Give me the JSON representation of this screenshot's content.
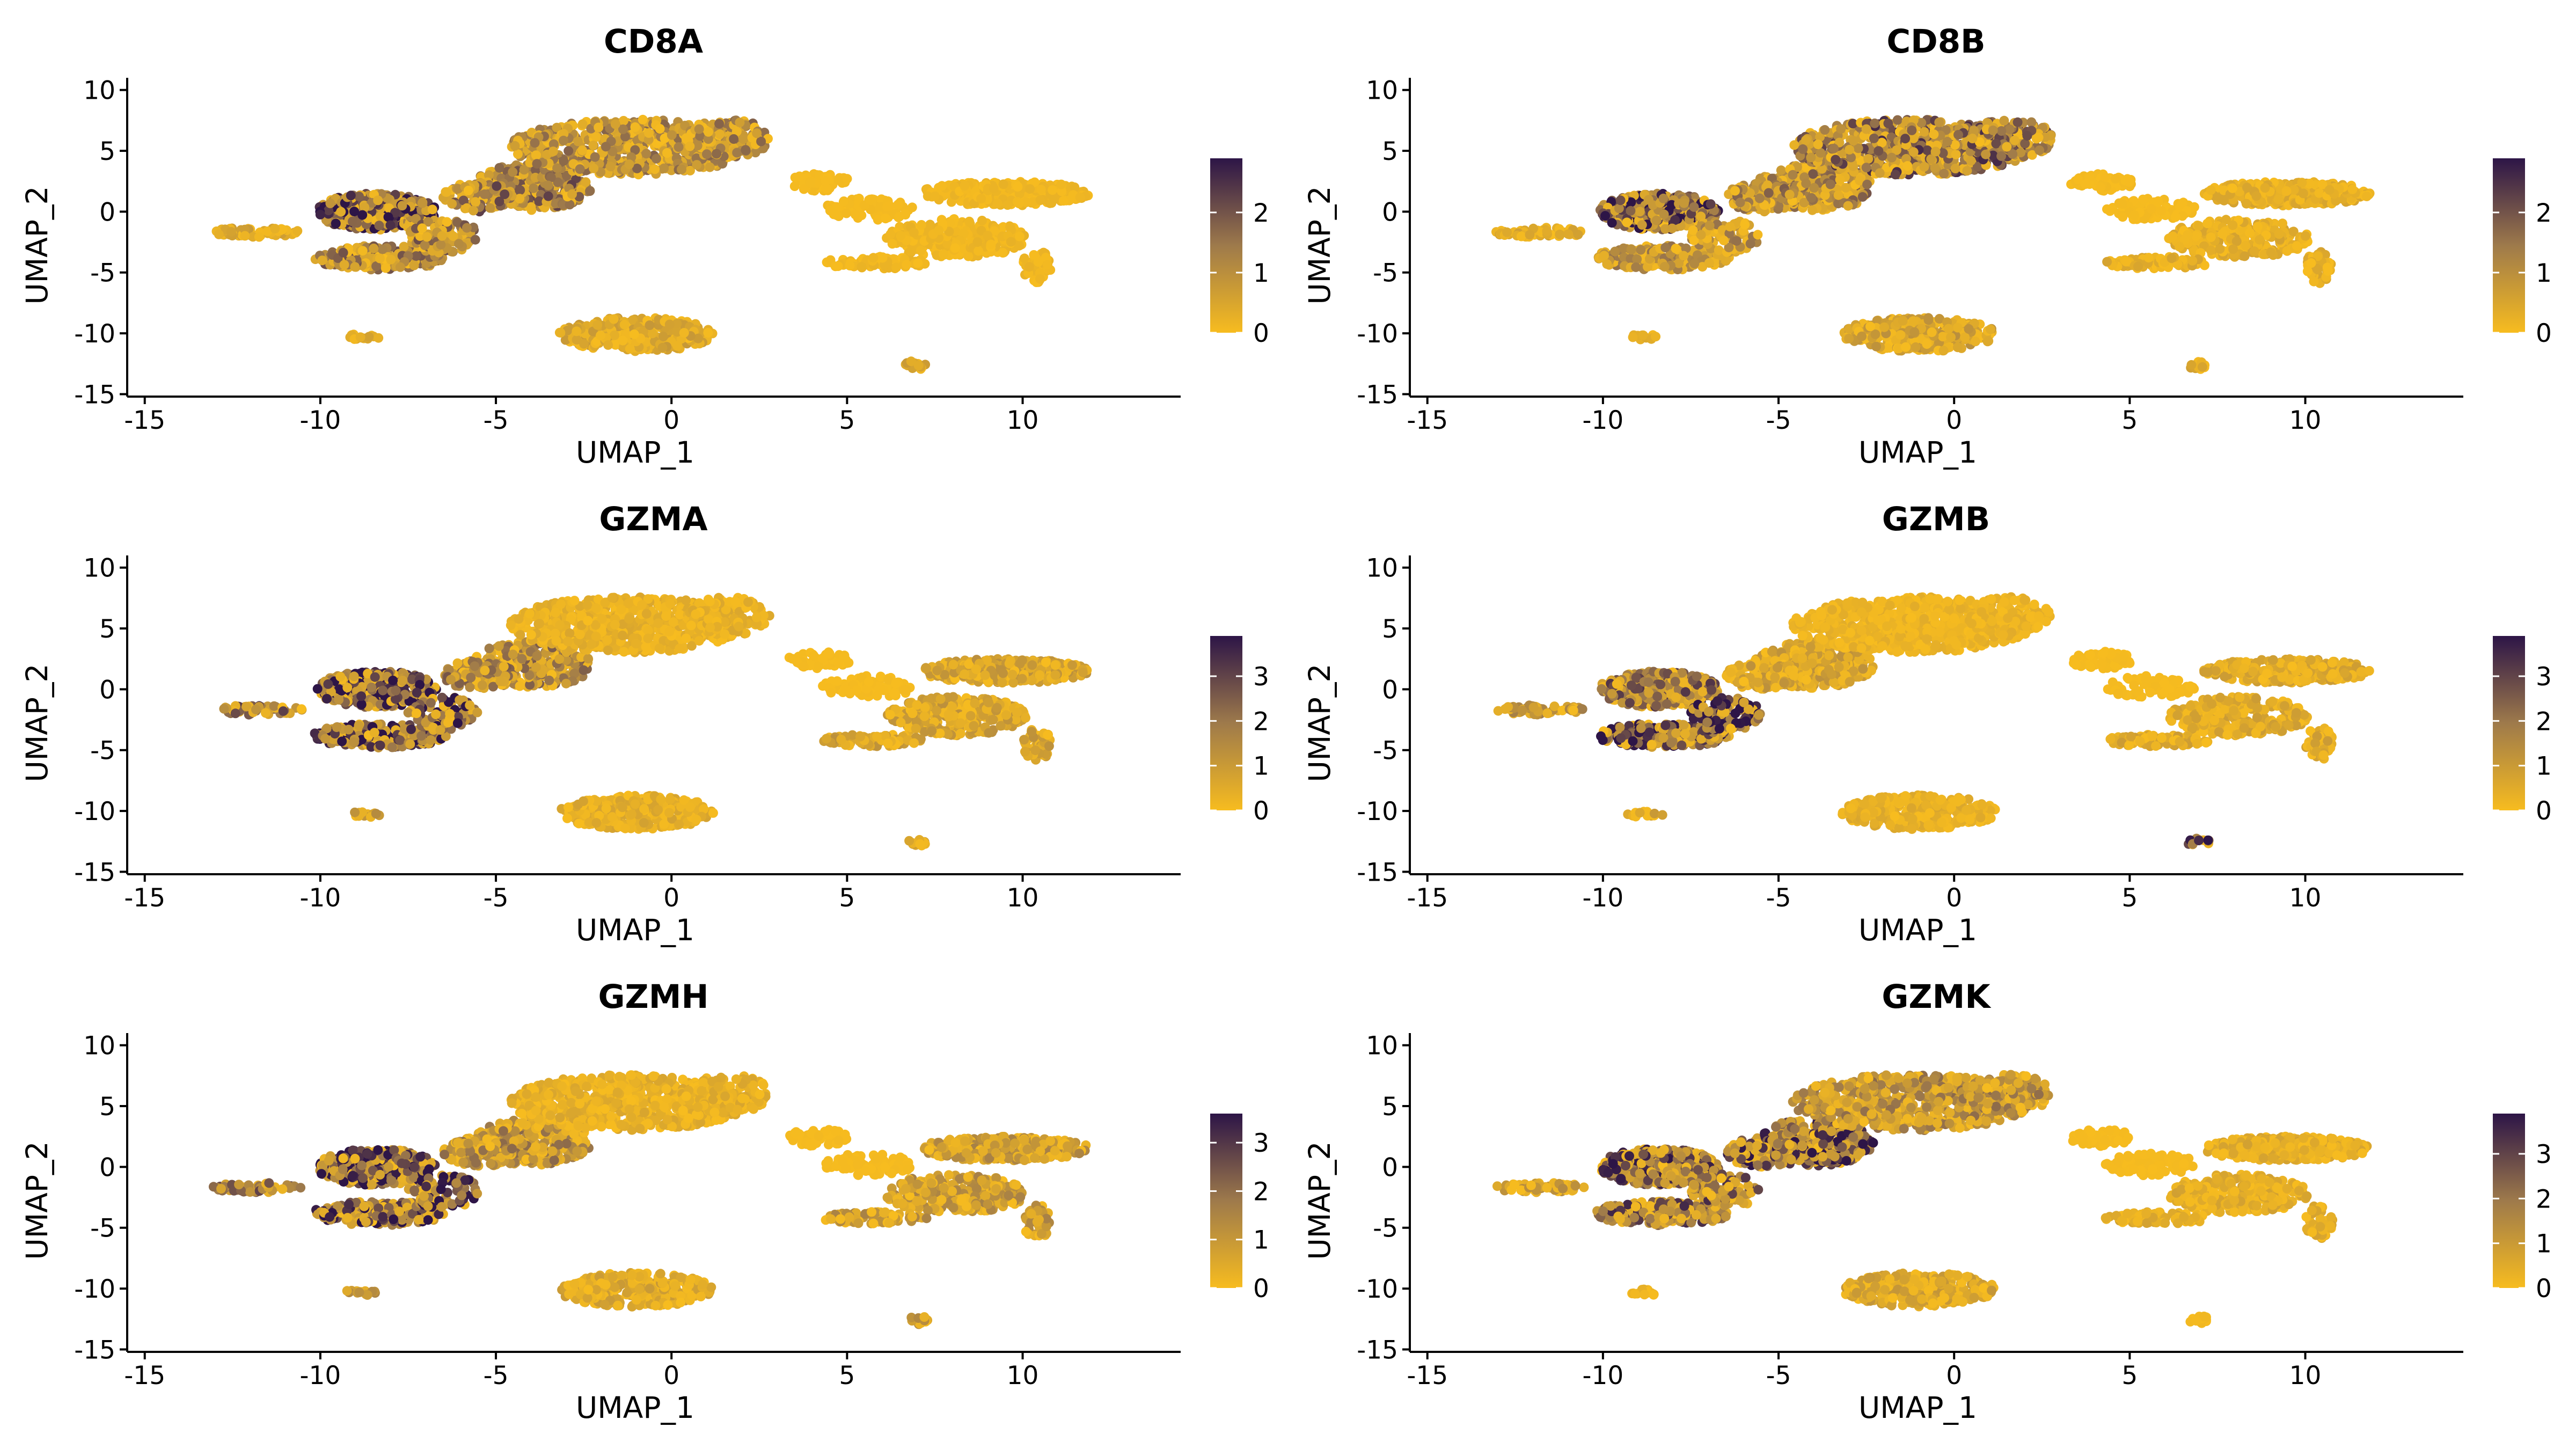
{
  "colors": {
    "low": "#F7BC1F",
    "mid": "#9E7A4B",
    "high": "#2D1547",
    "axis": "#000000",
    "background": "#ffffff"
  },
  "chart_data": [
    {
      "type": "scatter",
      "title": "CD8A",
      "xlabel": "UMAP_1",
      "ylabel": "UMAP_2",
      "xlim": [
        -15.5,
        14.5
      ],
      "ylim": [
        -15.2,
        11
      ],
      "xticks": [
        -15,
        -10,
        -5,
        0,
        5,
        10
      ],
      "yticks": [
        -15,
        -10,
        -5,
        0,
        5,
        10
      ],
      "color_scale": {
        "min": 0,
        "max": 2.9,
        "ticks": [
          0,
          1,
          2
        ]
      },
      "grid": false,
      "legend": "right",
      "regions": [
        {
          "name": "left-tail",
          "expression": 0.5
        },
        {
          "name": "left-lobe-upper",
          "expression": 2.3
        },
        {
          "name": "left-lobe-lower",
          "expression": 1.3
        },
        {
          "name": "central-band",
          "expression": 1.4
        },
        {
          "name": "upper-arc",
          "expression": 1.1
        },
        {
          "name": "bridge",
          "expression": 0.05
        },
        {
          "name": "right-arm",
          "expression": 0.15
        },
        {
          "name": "bottom-island",
          "expression": 0.5
        },
        {
          "name": "small-left-cluster",
          "expression": 0.4
        },
        {
          "name": "small-right-cluster",
          "expression": 0.5
        }
      ]
    },
    {
      "type": "scatter",
      "title": "CD8B",
      "xlabel": "UMAP_1",
      "ylabel": "UMAP_2",
      "xlim": [
        -15.5,
        14.5
      ],
      "ylim": [
        -15.2,
        11
      ],
      "xticks": [
        -15,
        -10,
        -5,
        0,
        5,
        10
      ],
      "yticks": [
        -15,
        -10,
        -5,
        0,
        5,
        10
      ],
      "color_scale": {
        "min": 0,
        "max": 2.9,
        "ticks": [
          0,
          1,
          2
        ]
      },
      "grid": false,
      "legend": "right",
      "regions": [
        {
          "name": "left-tail",
          "expression": 0.4
        },
        {
          "name": "left-lobe-upper",
          "expression": 2.2
        },
        {
          "name": "left-lobe-lower",
          "expression": 1.0
        },
        {
          "name": "central-band",
          "expression": 1.2
        },
        {
          "name": "upper-arc",
          "expression": 1.6
        },
        {
          "name": "bridge",
          "expression": 0.05
        },
        {
          "name": "right-arm",
          "expression": 0.35
        },
        {
          "name": "bottom-island",
          "expression": 0.6
        },
        {
          "name": "small-left-cluster",
          "expression": 0.3
        },
        {
          "name": "small-right-cluster",
          "expression": 0.4
        }
      ]
    },
    {
      "type": "scatter",
      "title": "GZMA",
      "xlabel": "UMAP_1",
      "ylabel": "UMAP_2",
      "xlim": [
        -15.5,
        14.5
      ],
      "ylim": [
        -15.2,
        11
      ],
      "xticks": [
        -15,
        -10,
        -5,
        0,
        5,
        10
      ],
      "yticks": [
        -15,
        -10,
        -5,
        0,
        5,
        10
      ],
      "color_scale": {
        "min": 0,
        "max": 3.9,
        "ticks": [
          0,
          1,
          2,
          3
        ]
      },
      "grid": false,
      "legend": "right",
      "regions": [
        {
          "name": "left-tail",
          "expression": 2.0
        },
        {
          "name": "left-lobe-upper",
          "expression": 3.2
        },
        {
          "name": "left-lobe-lower",
          "expression": 2.9
        },
        {
          "name": "central-band",
          "expression": 1.6
        },
        {
          "name": "upper-arc",
          "expression": 0.4
        },
        {
          "name": "bridge",
          "expression": 0.05
        },
        {
          "name": "right-arm",
          "expression": 0.8
        },
        {
          "name": "bottom-island",
          "expression": 0.5
        },
        {
          "name": "small-left-cluster",
          "expression": 0.9
        },
        {
          "name": "small-right-cluster",
          "expression": 0.8
        }
      ]
    },
    {
      "type": "scatter",
      "title": "GZMB",
      "xlabel": "UMAP_1",
      "ylabel": "UMAP_2",
      "xlim": [
        -15.5,
        14.5
      ],
      "ylim": [
        -15.2,
        11
      ],
      "xticks": [
        -15,
        -10,
        -5,
        0,
        5,
        10
      ],
      "yticks": [
        -15,
        -10,
        -5,
        0,
        5,
        10
      ],
      "color_scale": {
        "min": 0,
        "max": 3.9,
        "ticks": [
          0,
          1,
          2,
          3
        ]
      },
      "grid": false,
      "legend": "right",
      "regions": [
        {
          "name": "left-tail",
          "expression": 1.2
        },
        {
          "name": "left-lobe-upper",
          "expression": 2.0
        },
        {
          "name": "left-lobe-lower",
          "expression": 3.1
        },
        {
          "name": "central-band",
          "expression": 0.8
        },
        {
          "name": "upper-arc",
          "expression": 0.3
        },
        {
          "name": "bridge",
          "expression": 0.05
        },
        {
          "name": "right-arm",
          "expression": 0.6
        },
        {
          "name": "bottom-island",
          "expression": 0.4
        },
        {
          "name": "small-left-cluster",
          "expression": 0.7
        },
        {
          "name": "small-right-cluster",
          "expression": 3.4
        }
      ]
    },
    {
      "type": "scatter",
      "title": "GZMH",
      "xlabel": "UMAP_1",
      "ylabel": "UMAP_2",
      "xlim": [
        -15.5,
        14.5
      ],
      "ylim": [
        -15.2,
        11
      ],
      "xticks": [
        -15,
        -10,
        -5,
        0,
        5,
        10
      ],
      "yticks": [
        -15,
        -10,
        -5,
        0,
        5,
        10
      ],
      "color_scale": {
        "min": 0,
        "max": 3.6,
        "ticks": [
          0,
          1,
          2,
          3
        ]
      },
      "grid": false,
      "legend": "right",
      "regions": [
        {
          "name": "left-tail",
          "expression": 1.8
        },
        {
          "name": "left-lobe-upper",
          "expression": 2.9
        },
        {
          "name": "left-lobe-lower",
          "expression": 2.5
        },
        {
          "name": "central-band",
          "expression": 1.3
        },
        {
          "name": "upper-arc",
          "expression": 0.4
        },
        {
          "name": "bridge",
          "expression": 0.05
        },
        {
          "name": "right-arm",
          "expression": 1.0
        },
        {
          "name": "bottom-island",
          "expression": 0.6
        },
        {
          "name": "small-left-cluster",
          "expression": 1.0
        },
        {
          "name": "small-right-cluster",
          "expression": 0.9
        }
      ]
    },
    {
      "type": "scatter",
      "title": "GZMK",
      "xlabel": "UMAP_1",
      "ylabel": "UMAP_2",
      "xlim": [
        -15.5,
        14.5
      ],
      "ylim": [
        -15.2,
        11
      ],
      "xticks": [
        -15,
        -10,
        -5,
        0,
        5,
        10
      ],
      "yticks": [
        -15,
        -10,
        -5,
        0,
        5,
        10
      ],
      "color_scale": {
        "min": 0,
        "max": 3.9,
        "ticks": [
          0,
          1,
          2,
          3
        ]
      },
      "grid": false,
      "legend": "right",
      "regions": [
        {
          "name": "left-tail",
          "expression": 1.0
        },
        {
          "name": "left-lobe-upper",
          "expression": 2.6
        },
        {
          "name": "left-lobe-lower",
          "expression": 2.2
        },
        {
          "name": "central-band",
          "expression": 2.7
        },
        {
          "name": "upper-arc",
          "expression": 1.4
        },
        {
          "name": "bridge",
          "expression": 0.05
        },
        {
          "name": "right-arm",
          "expression": 0.5
        },
        {
          "name": "bottom-island",
          "expression": 0.7
        },
        {
          "name": "small-left-cluster",
          "expression": 0.3
        },
        {
          "name": "small-right-cluster",
          "expression": 0.1
        }
      ]
    }
  ]
}
